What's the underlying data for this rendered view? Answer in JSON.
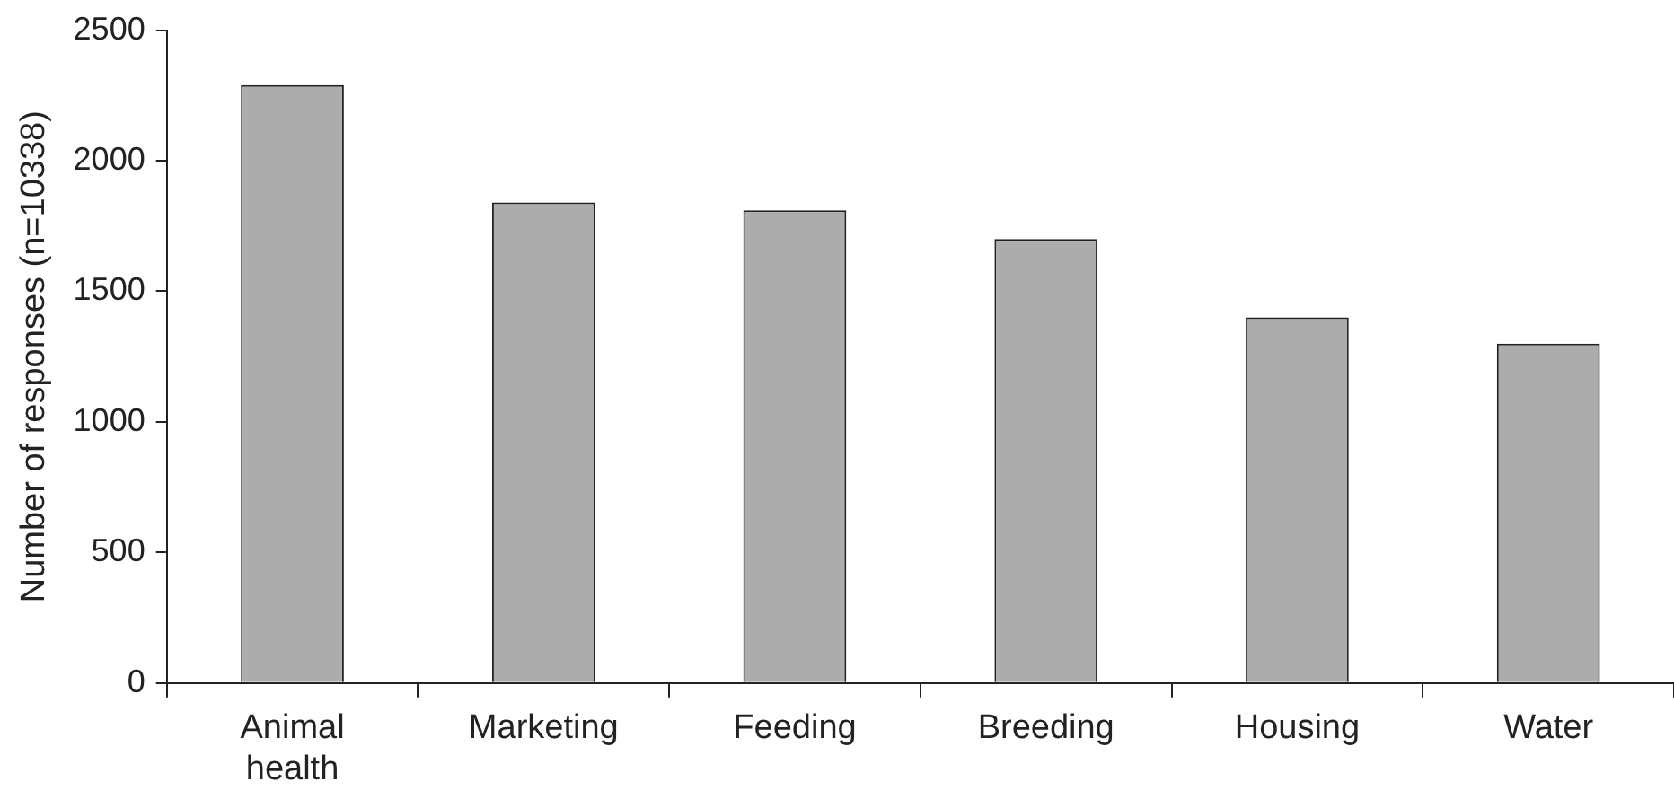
{
  "chart_data": {
    "type": "bar",
    "ylabel": "Number of responses (n=10338)",
    "categories": [
      "Animal health",
      "Marketing",
      "Feeding",
      "Breeding",
      "Housing",
      "Water"
    ],
    "values": [
      2290,
      1840,
      1810,
      1700,
      1400,
      1300
    ],
    "color": "#acacac",
    "ylim": [
      0,
      2500
    ],
    "yticks": [
      0,
      500,
      1000,
      1500,
      2000,
      2500
    ],
    "grid": false,
    "legend": false
  }
}
